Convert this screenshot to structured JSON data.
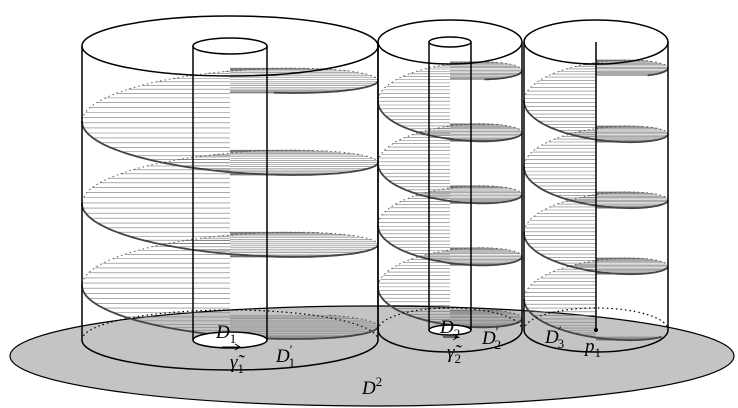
{
  "labels": [
    {
      "base": "D",
      "sub": "1"
    },
    {
      "base": "γ̃",
      "sub": "1"
    },
    {
      "base": "D",
      "sup": "′",
      "sub": "1"
    },
    {
      "base": "D",
      "sub": "2"
    },
    {
      "base": "γ̃",
      "sub": "2"
    },
    {
      "base": "D",
      "sup": "′",
      "sub": "2"
    },
    {
      "base": "D",
      "sup": "′",
      "sub": "3"
    },
    {
      "base": "p",
      "sub": "1"
    },
    {
      "base": "D",
      "sup": "2"
    }
  ]
}
